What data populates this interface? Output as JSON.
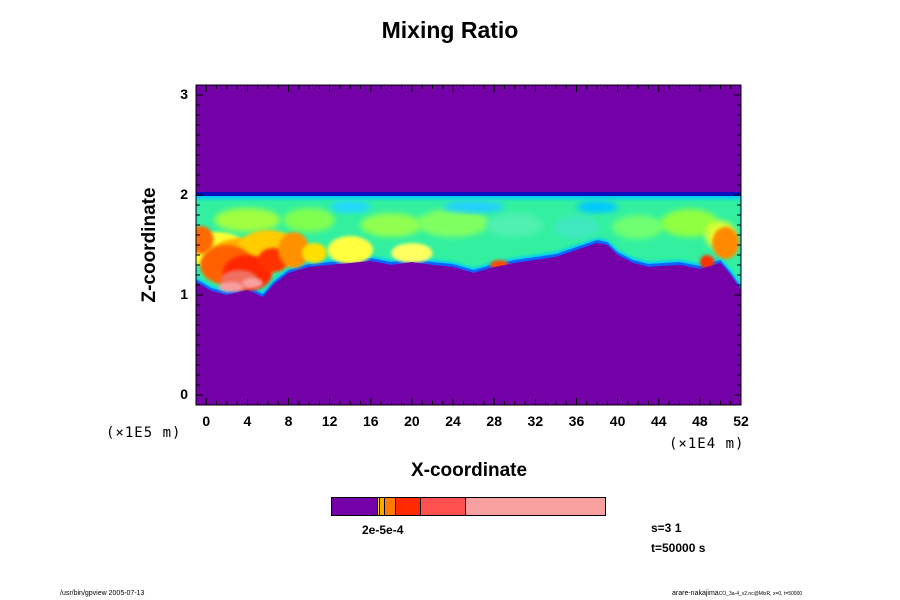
{
  "chart_data": {
    "type": "heatmap",
    "title": "Mixing Ratio",
    "xlabel": "X-coordinate",
    "ylabel": "Z-coordinate",
    "x_units": "(×1E4 m)",
    "y_units": "(×1E5 m)",
    "x_ticks": [
      "0",
      "4",
      "8",
      "12",
      "16",
      "20",
      "24",
      "28",
      "32",
      "36",
      "40",
      "44",
      "48",
      "52"
    ],
    "y_ticks": [
      "0",
      "1",
      "2",
      "3"
    ],
    "xlim": [
      -1,
      52
    ],
    "ylim": [
      -0.1,
      3.1
    ],
    "colorbar_label": "2e-5e-4",
    "colorbar_colors": [
      "#7400a8",
      "#f2e000",
      "#ffa400",
      "#ff7a00",
      "#ff2a00",
      "#ff5050",
      "#f8a0a0"
    ],
    "colorbar_fractions": [
      0.168,
      0.006,
      0.012,
      0.04,
      0.09,
      0.165,
      0.519
    ],
    "background_color": "#7400a8",
    "layer": {
      "bottom_profile": [
        [
          -1,
          1.13
        ],
        [
          0.5,
          1.04
        ],
        [
          2,
          1.0
        ],
        [
          4,
          1.05
        ],
        [
          5.5,
          0.98
        ],
        [
          6.5,
          1.1
        ],
        [
          8,
          1.22
        ],
        [
          10,
          1.28
        ],
        [
          12,
          1.3
        ],
        [
          14,
          1.32
        ],
        [
          16,
          1.34
        ],
        [
          18,
          1.3
        ],
        [
          20,
          1.33
        ],
        [
          22,
          1.3
        ],
        [
          24,
          1.28
        ],
        [
          26,
          1.22
        ],
        [
          28,
          1.28
        ],
        [
          30,
          1.32
        ],
        [
          32,
          1.35
        ],
        [
          34,
          1.38
        ],
        [
          36,
          1.45
        ],
        [
          38,
          1.52
        ],
        [
          39,
          1.5
        ],
        [
          40,
          1.4
        ],
        [
          41.5,
          1.32
        ],
        [
          43,
          1.28
        ],
        [
          46,
          1.3
        ],
        [
          48,
          1.26
        ],
        [
          50,
          1.32
        ],
        [
          51,
          1.2
        ],
        [
          52,
          1.05
        ]
      ],
      "top": 2.02,
      "hot_region_x": [
        -1,
        12
      ]
    },
    "annotations": {
      "s": "s=3 1",
      "t": "t=50000 s"
    }
  },
  "footer": {
    "left": "/usr/bin/gpview 2005-07-13",
    "right_main": "arare-nakajima",
    "right_small": "CO_3a-4_v2.nc@MixR, x=0, t=50000"
  }
}
